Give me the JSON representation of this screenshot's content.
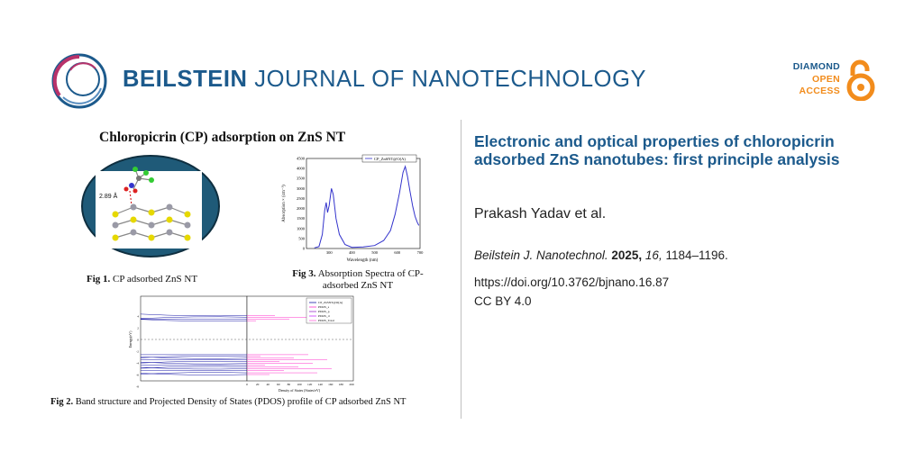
{
  "header": {
    "journal_bold": "BEILSTEIN",
    "journal_rest": " JOURNAL OF NANOTECHNOLOGY",
    "badge": {
      "line1": "DIAMOND",
      "line2": "OPEN",
      "line3": "ACCESS"
    },
    "colors": {
      "brand": "#1c5a8c",
      "accent": "#f28c1c",
      "ring": "#b8326a"
    }
  },
  "graphical_abstract": {
    "title": "Chloropicrin (CP) adsorption on ZnS NT",
    "fig1": {
      "label": "Fig 1.",
      "caption": " CP adsorbed ZnS NT",
      "bond_label": "2.89 Å"
    },
    "fig3": {
      "label": "Fig 3.",
      "caption": " Absorption Spectra of CP-adsorbed ZnS NT"
    },
    "fig2": {
      "label": "Fig 2.",
      "caption": " Band structure and Projected Density of States (PDOS) profile of CP adsorbed ZnS NT"
    }
  },
  "chart_data": [
    {
      "type": "line",
      "legend": [
        "CP_ZnSNT@O(A)"
      ],
      "xlabel": "Wavelength (nm)",
      "ylabel": "Absorption × (cm⁻¹)",
      "xlim": [
        200,
        700
      ],
      "ylim": [
        0,
        4500
      ],
      "xticks": [
        "300",
        "400",
        "500",
        "600",
        "700"
      ],
      "yticks": [
        "0",
        "500",
        "1000",
        "1500",
        "2000",
        "2500",
        "3000",
        "3500",
        "4000",
        "4500"
      ],
      "series": [
        {
          "name": "CP_ZnSNT@O(A)",
          "x": [
            235,
            255,
            270,
            280,
            287,
            293,
            300,
            310,
            318,
            330,
            345,
            370,
            400,
            450,
            500,
            540,
            570,
            590,
            610,
            625,
            635,
            645,
            655,
            668,
            678,
            688,
            695
          ],
          "values": [
            30,
            100,
            700,
            1900,
            2300,
            1800,
            2150,
            3000,
            2700,
            1500,
            700,
            200,
            60,
            80,
            150,
            400,
            900,
            1700,
            2800,
            3800,
            4100,
            3600,
            2900,
            2100,
            1600,
            1300,
            1150
          ]
        }
      ]
    },
    {
      "type": "line",
      "legend": [
        "CP_ZnSNT@O(A)",
        "PDOS_s",
        "PDOS_p",
        "PDOS_d",
        "PDOS_Total"
      ],
      "xlabel": "Density of States (States/eV)",
      "ylabel": "Energy(eV)",
      "xticks": [
        "0",
        "20",
        "40",
        "60",
        "80",
        "100",
        "120",
        "140",
        "160",
        "180",
        "200"
      ],
      "yticks": [
        "4",
        "2",
        "0",
        "-2",
        "-4",
        "-6",
        "-8"
      ]
    }
  ],
  "article": {
    "title": "Electronic and optical properties of chloropicrin adsorbed ZnS nanotubes: first principle analysis",
    "authors": "Prakash Yadav et al.",
    "journal_abbrev": "Beilstein J. Nanotechnol.",
    "year": "2025,",
    "volume": "16,",
    "pages": "1184–1196.",
    "doi": "https://doi.org/10.3762/bjnano.16.87",
    "license": "CC BY 4.0"
  }
}
